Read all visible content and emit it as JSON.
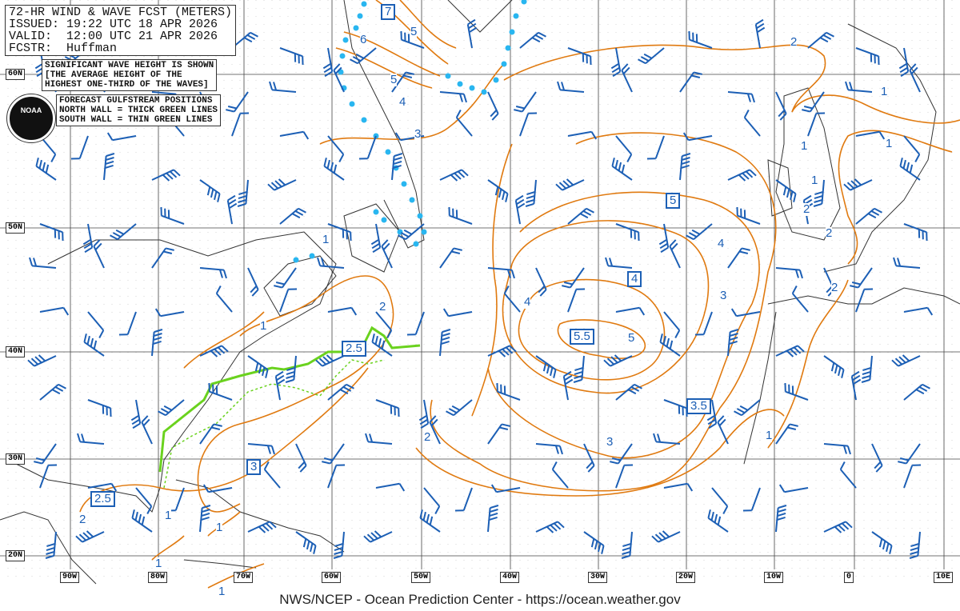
{
  "header": {
    "title": "72-HR WIND & WAVE FCST (METERS)",
    "issued": "ISSUED: 19:22 UTC 18 APR 2026",
    "valid": "VALID:  12:00 UTC 21 APR 2026",
    "forecaster": "FCSTR:  Huffman"
  },
  "notes": {
    "wave": "SIGNIFICANT WAVE HEIGHT IS SHOWN\n[THE AVERAGE HEIGHT OF THE\nHIGHEST ONE-THIRD OF THE WAVES]",
    "gulfstream": "FORECAST GULFSTREAM POSITIONS\nNORTH WALL = THICK GREEN LINES\nSOUTH WALL = THIN GREEN LINES"
  },
  "logo": {
    "text": "NOAA"
  },
  "latitudes": [
    "60N",
    "50N",
    "40N",
    "30N",
    "20N"
  ],
  "longitudes": [
    "90W",
    "80W",
    "70W",
    "60W",
    "50W",
    "40W",
    "30W",
    "20W",
    "10W",
    "0",
    "10E"
  ],
  "wave_labels_boxed": [
    "7",
    "5",
    "4",
    "5.5",
    "3.5",
    "2.5",
    "3",
    "2.5"
  ],
  "wave_labels": [
    "6",
    "5",
    "5",
    "4",
    "3",
    "2",
    "1",
    "1",
    "1",
    "1",
    "2",
    "2",
    "2",
    "4",
    "3",
    "4",
    "5",
    "3",
    "2",
    "1",
    "1",
    "1",
    "2",
    "2",
    "1",
    "1",
    "1",
    "1"
  ],
  "colors": {
    "contour": "#e07a10",
    "wind": "#1c5fb5",
    "gulfstream": "#6ad21e",
    "ice": "#29b6f0",
    "coast": "#333333"
  },
  "footer": "NWS/NCEP - Ocean Prediction Center - https://ocean.weather.gov"
}
